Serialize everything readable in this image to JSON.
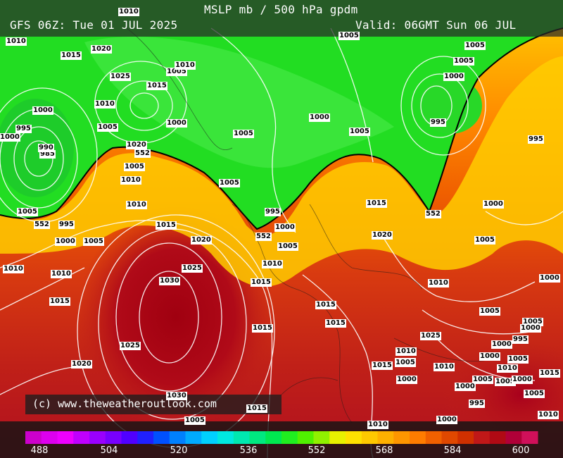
{
  "header": {
    "title": "MSLP mb / 500 hPa gpdm",
    "model_run": "GFS 06Z: Tue 01 JUL 2025",
    "valid": "Valid: 06GMT Sun 06 JUL"
  },
  "credit": "(c) www.theweatheroutlook.com",
  "legend": {
    "tick_labels": [
      "488",
      "504",
      "520",
      "536",
      "552",
      "568",
      "584",
      "600"
    ],
    "min": 488,
    "max": 600,
    "step": 4,
    "colors": [
      "#cc00cc",
      "#dd00ee",
      "#ee00ff",
      "#c000ff",
      "#9a00ff",
      "#7800ff",
      "#5000ff",
      "#2020ff",
      "#0050ff",
      "#0080ff",
      "#00aaff",
      "#00d0ff",
      "#00e8e0",
      "#00e8b0",
      "#00e880",
      "#00e850",
      "#20ee20",
      "#50f000",
      "#90f000",
      "#e8f000",
      "#ffe000",
      "#ffc800",
      "#ffb000",
      "#ff9600",
      "#ff7c00",
      "#f06000",
      "#e04800",
      "#d03000",
      "#c01818",
      "#b00a14",
      "#b00038",
      "#d0105a"
    ]
  },
  "labels": {
    "pressure": [
      "1010",
      "1010",
      "1015",
      "1020",
      "1025",
      "1015",
      "1010",
      "1005",
      "1010",
      "1000",
      "995",
      "1000",
      "985",
      "990",
      "1005",
      "1000",
      "1020",
      "1005",
      "552",
      "1005",
      "1010",
      "1010",
      "1015",
      "1020",
      "1025",
      "1030",
      "1025",
      "1020",
      "1030",
      "552",
      "995",
      "1000",
      "1005",
      "1010",
      "1010",
      "1015",
      "1005",
      "1005",
      "1000",
      "1005",
      "995",
      "1000",
      "552",
      "1005",
      "1010",
      "1015",
      "1015",
      "1015",
      "1015",
      "1015",
      "1005",
      "1005",
      "1010",
      "1005",
      "1000",
      "995",
      "1000",
      "1005",
      "1015",
      "1020",
      "552",
      "995",
      "1000",
      "1005",
      "1000",
      "1010",
      "1005",
      "1005",
      "1000",
      "995",
      "1000",
      "1005",
      "1010",
      "1015",
      "1005",
      "1010",
      "1005",
      "1000",
      "995",
      "1000",
      "1005",
      "1010",
      "1005",
      "1000",
      "1025",
      "1010",
      "1000",
      "1005",
      "1010",
      "1015",
      "1020",
      "1005",
      "1005",
      "1000",
      "1005"
    ]
  }
}
